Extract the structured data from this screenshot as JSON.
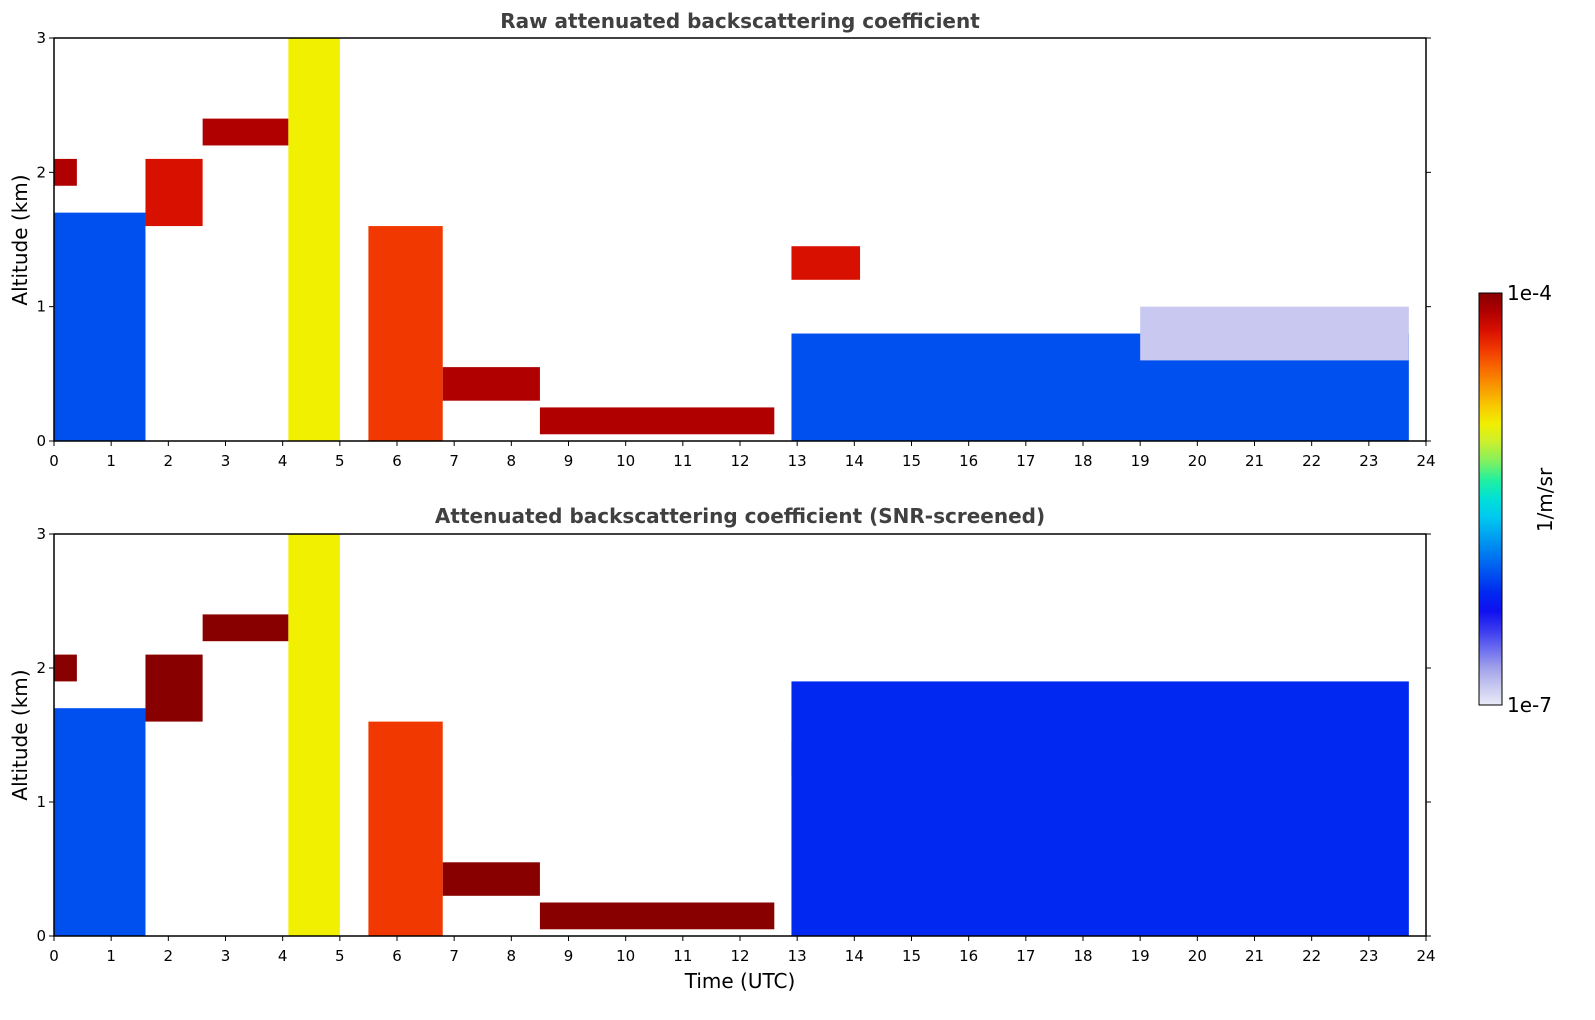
{
  "chart_data": [
    {
      "type": "heatmap",
      "title": "Raw attenuated backscattering coefficient",
      "xlabel": "",
      "ylabel": "Altitude (km)",
      "xlim": [
        0,
        24
      ],
      "ylim": [
        0,
        3
      ],
      "xticks": [
        "0",
        "1",
        "2",
        "3",
        "4",
        "5",
        "6",
        "7",
        "8",
        "9",
        "10",
        "11",
        "12",
        "13",
        "14",
        "15",
        "16",
        "17",
        "18",
        "19",
        "20",
        "21",
        "22",
        "23",
        "24"
      ],
      "yticks": [
        "0",
        "1",
        "2",
        "3"
      ],
      "layers": [
        {
          "t": [
            0,
            1.6
          ],
          "z": [
            0,
            1.7
          ],
          "level": 0.3
        },
        {
          "t": [
            0,
            0.4
          ],
          "z": [
            1.9,
            2.1
          ],
          "level": 0.95
        },
        {
          "t": [
            1.6,
            2.6
          ],
          "z": [
            1.6,
            2.1
          ],
          "level": 0.9
        },
        {
          "t": [
            2.6,
            4.1
          ],
          "z": [
            2.2,
            2.4
          ],
          "level": 0.95
        },
        {
          "t": [
            4.1,
            5.0
          ],
          "z": [
            0,
            3
          ],
          "level": 0.7
        },
        {
          "t": [
            5.5,
            6.8
          ],
          "z": [
            0,
            1.6
          ],
          "level": 0.88
        },
        {
          "t": [
            6.8,
            8.5
          ],
          "z": [
            0.3,
            0.55
          ],
          "level": 0.95
        },
        {
          "t": [
            8.5,
            12.6
          ],
          "z": [
            0.05,
            0.25
          ],
          "level": 0.95
        },
        {
          "t": [
            12.9,
            14.1
          ],
          "z": [
            1.2,
            1.45
          ],
          "level": 0.9
        },
        {
          "t": [
            12.9,
            23.7
          ],
          "z": [
            0,
            0.8
          ],
          "level": 0.3
        },
        {
          "t": [
            19,
            23.7
          ],
          "z": [
            0.6,
            1.0
          ],
          "level": 0.05
        }
      ]
    },
    {
      "type": "heatmap",
      "title": "Attenuated backscattering coefficient (SNR-screened)",
      "xlabel": "Time (UTC)",
      "ylabel": "Altitude (km)",
      "xlim": [
        0,
        24
      ],
      "ylim": [
        0,
        3
      ],
      "xticks": [
        "0",
        "1",
        "2",
        "3",
        "4",
        "5",
        "6",
        "7",
        "8",
        "9",
        "10",
        "11",
        "12",
        "13",
        "14",
        "15",
        "16",
        "17",
        "18",
        "19",
        "20",
        "21",
        "22",
        "23",
        "24"
      ],
      "yticks": [
        "0",
        "1",
        "2",
        "3"
      ],
      "layers": [
        {
          "t": [
            0,
            1.6
          ],
          "z": [
            0,
            1.7
          ],
          "level": 0.3
        },
        {
          "t": [
            0,
            0.4
          ],
          "z": [
            1.9,
            2.1
          ],
          "level": 1.0
        },
        {
          "t": [
            1.6,
            2.6
          ],
          "z": [
            1.6,
            2.1
          ],
          "level": 1.0
        },
        {
          "t": [
            2.6,
            4.1
          ],
          "z": [
            2.2,
            2.4
          ],
          "level": 1.0
        },
        {
          "t": [
            4.1,
            5.0
          ],
          "z": [
            0,
            3
          ],
          "level": 0.7
        },
        {
          "t": [
            5.5,
            6.8
          ],
          "z": [
            0,
            1.6
          ],
          "level": 0.88
        },
        {
          "t": [
            6.8,
            8.5
          ],
          "z": [
            0.3,
            0.55
          ],
          "level": 1.0
        },
        {
          "t": [
            8.5,
            12.6
          ],
          "z": [
            0.05,
            0.25
          ],
          "level": 1.0
        },
        {
          "t": [
            12.9,
            14.1
          ],
          "z": [
            1.2,
            1.45
          ],
          "level": 1.0
        },
        {
          "t": [
            12.9,
            23.7
          ],
          "z": [
            0,
            1.9
          ],
          "level": 0.25
        }
      ]
    }
  ],
  "colorbar": {
    "max_label": "1e-4",
    "min_label": "1e-7",
    "unit_label": "1/m/sr",
    "colors": [
      "#eaeaf8",
      "#c8c8f0",
      "#a0a0ea",
      "#6c6cf0",
      "#3a3af0",
      "#1010f0",
      "#0028f0",
      "#0050f0",
      "#0078f0",
      "#00a0f0",
      "#00c8f0",
      "#00e0d8",
      "#20f0a0",
      "#80f060",
      "#c8f030",
      "#f0f000",
      "#f8c800",
      "#f89800",
      "#f86800",
      "#f03800",
      "#d81000",
      "#b00000",
      "#880000"
    ]
  }
}
